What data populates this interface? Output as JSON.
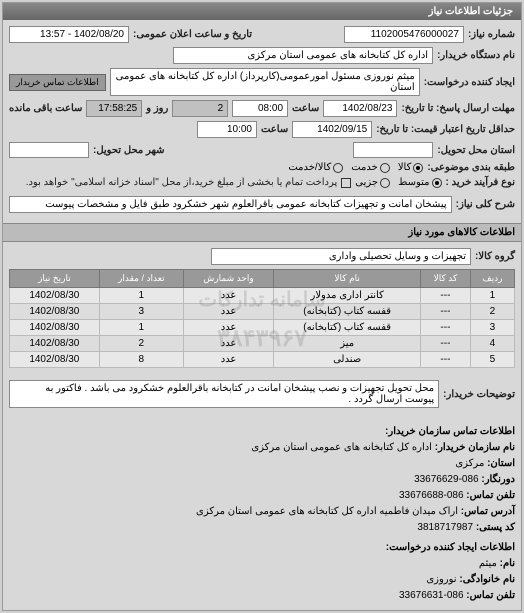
{
  "header": {
    "title": "جزئیات اطلاعات نیاز"
  },
  "main": {
    "req_no_label": "شماره نیاز:",
    "req_no": "1102005476000027",
    "announce_label": "تاریخ و ساعت اعلان عمومی:",
    "announce_value": "1402/08/20 - 13:57",
    "buyer_org_label": "نام دستگاه خریدار:",
    "buyer_org": "اداره کل کتابخانه های عمومی استان مرکزی",
    "requester_label": "ایجاد کننده درخواست:",
    "requester": "میثم نوروزی مسئول امورعمومی(کارپرداز) اداره کل کتابخانه های عمومی استان",
    "contact_link": "اطلاعات تماس خریدار",
    "deadline_label": "مهلت ارسال پاسخ: تا تاریخ:",
    "deadline_date": "1402/08/23",
    "time_label": "ساعت",
    "deadline_time": "08:00",
    "days_left": "2",
    "days_label": "روز و",
    "hours_left": "17:58:25",
    "remain_label": "ساعت باقی مانده",
    "credit_label": "حداقل تاریخ اعتبار قیمت: تا تاریخ:",
    "credit_date": "1402/09/15",
    "credit_time": "10:00",
    "deliver_province_label": "استان محل تحویل:",
    "deliver_city_label": "شهر محل تحویل:",
    "pkg_label": "طبقه بندی موضوعی:",
    "pkg_options": {
      "all": "کالا",
      "service": "خدمت",
      "both": "کالا/خدمت"
    },
    "pkg_selected": "all",
    "buy_type_label": "نوع فرآیند خرید :",
    "buy_options": {
      "mid": "متوسط",
      "partial": "جزیی"
    },
    "buy_selected": "mid",
    "note": "پرداخت تمام یا بخشی از مبلغ خرید،از محل \"اسناد خزانه اسلامی\" خواهد بود.",
    "desc_label": "شرح کلی نیاز:",
    "desc": "پیشخان امانت و تجهیزات کتابخانه عمومی باقرالعلوم شهر خشکرود طبق فایل و مشخصات پیوست"
  },
  "goods": {
    "section_title": "اطلاعات کالاهای مورد نیاز",
    "group_label": "گروه کالا:",
    "group": "تجهیزات و وسایل تحصیلی واداری",
    "columns": [
      "ردیف",
      "کد کالا",
      "نام کالا",
      "واحد شمارش",
      "تعداد / مقدار",
      "تاریخ نیاز"
    ],
    "rows": [
      [
        "1",
        "---",
        "کانتر اداری مدولار",
        "عدد",
        "1",
        "1402/08/30"
      ],
      [
        "2",
        "---",
        "قفسه کتاب (کتابخانه)",
        "عدد",
        "3",
        "1402/08/30"
      ],
      [
        "3",
        "---",
        "قفسه کتاب (کتابخانه)",
        "عدد",
        "1",
        "1402/08/30"
      ],
      [
        "4",
        "---",
        "میز",
        "عدد",
        "2",
        "1402/08/30"
      ],
      [
        "5",
        "---",
        "صندلی",
        "عدد",
        "8",
        "1402/08/30"
      ]
    ],
    "watermark1": "سامانه تدارکات",
    "watermark2": "۳۸۴۳۹۶۷"
  },
  "buyer_note": {
    "label": "توضیحات خریدار:",
    "text": "محل تحویل تجهیزات و نصب پیشخان امانت در کتابخانه باقرالعلوم خشکرود می باشد . فاکتور به پیوست ارسال گردد ."
  },
  "contact": {
    "section": "اطلاعات تماس سازمان خریدار:",
    "org_label": "نام سازمان خریدار:",
    "org": "اداره کل کتابخانه های عمومی استان مرکزی",
    "province_label": "استان:",
    "province": "مرکزی",
    "faxpre_label": "دورنگار:",
    "faxpre": "086-33676629",
    "tel_label": "تلفن تماس:",
    "tel": "086-33676688",
    "addr_label": "آدرس تماس:",
    "addr": "اراک میدان فاطمیه اداره کل کتابخانه های عمومی استان مرکزی",
    "post_label": "کد پستی:",
    "post": "3818717987",
    "creator_section": "اطلاعات ایجاد کننده درخواست:",
    "name_label": "نام:",
    "name": "میثم",
    "family_label": "نام خانوادگی:",
    "family": "نوروزی",
    "ctel_label": "تلفن تماس:",
    "ctel": "086-33676631"
  }
}
